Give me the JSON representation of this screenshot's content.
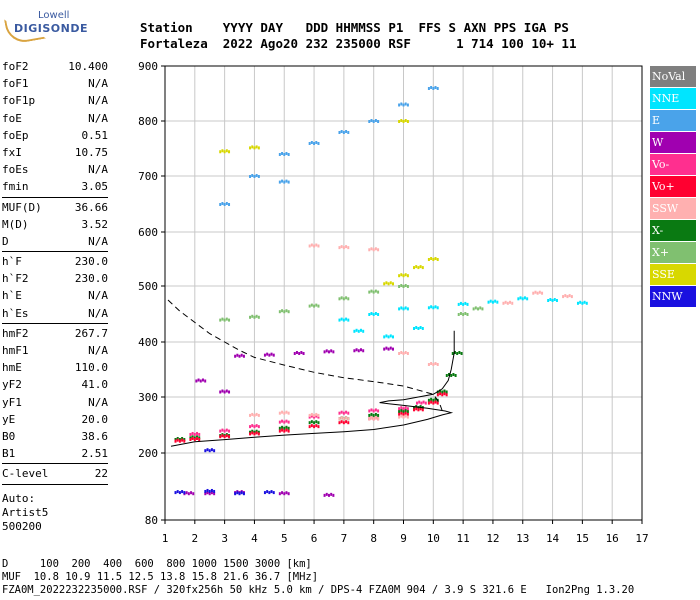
{
  "logo": {
    "line1": "Lowell",
    "line2": "DIGISONDE"
  },
  "header": {
    "row1": "Station    YYYY DAY   DDD HHMMSS P1  FFS S AXN PPS IGA PS",
    "row2": "Fortaleza  2022 Ago20 232 235000 RSF      1 714 100 10+ 11"
  },
  "params": {
    "group1": [
      {
        "label": "foF2",
        "value": "10.400"
      },
      {
        "label": "foF1",
        "value": "N/A"
      },
      {
        "label": "foF1p",
        "value": "N/A"
      },
      {
        "label": "foE",
        "value": "N/A"
      },
      {
        "label": "foEp",
        "value": "0.51"
      },
      {
        "label": "fxI",
        "value": "10.75"
      },
      {
        "label": "foEs",
        "value": "N/A"
      },
      {
        "label": "fmin",
        "value": "3.05"
      }
    ],
    "group2": [
      {
        "label": "MUF(D)",
        "value": "36.66"
      },
      {
        "label": "M(D)",
        "value": "3.52"
      },
      {
        "label": "D",
        "value": "N/A"
      }
    ],
    "group3": [
      {
        "label": "h`F",
        "value": "230.0"
      },
      {
        "label": "h`F2",
        "value": "230.0"
      },
      {
        "label": "h`E",
        "value": "N/A"
      },
      {
        "label": "h`Es",
        "value": "N/A"
      }
    ],
    "group4": [
      {
        "label": "hmF2",
        "value": "267.7"
      },
      {
        "label": "hmF1",
        "value": "N/A"
      },
      {
        "label": "hmE",
        "value": "110.0"
      },
      {
        "label": "yF2",
        "value": "41.0"
      },
      {
        "label": "yF1",
        "value": "N/A"
      },
      {
        "label": "yE",
        "value": "20.0"
      },
      {
        "label": "B0",
        "value": "38.6"
      },
      {
        "label": "B1",
        "value": "2.51"
      }
    ],
    "group5": [
      {
        "label": "C-level",
        "value": "22"
      }
    ],
    "autoscale": [
      "Auto:",
      "Artist5",
      "500200"
    ]
  },
  "legend": [
    {
      "label": "NoVal",
      "color": "#7f7f7f"
    },
    {
      "label": "NNE",
      "color": "#00e5ff"
    },
    {
      "label": "E",
      "color": "#4aa3ea"
    },
    {
      "label": "W",
      "color": "#a000b0"
    },
    {
      "label": "Vo-",
      "color": "#ff2f8f"
    },
    {
      "label": "Vo+",
      "color": "#ff0030"
    },
    {
      "label": "SSW",
      "color": "#ffb0b0"
    },
    {
      "label": "X-",
      "color": "#0a7a12"
    },
    {
      "label": "X+",
      "color": "#80c070"
    },
    {
      "label": "SSE",
      "color": "#d8d800"
    },
    {
      "label": "NNW",
      "color": "#1a10e0"
    }
  ],
  "footer": {
    "line1": "D     100  200  400  600  800 1000 1500 3000 [km]",
    "line2": "MUF  10.8 10.9 11.5 12.5 13.8 15.8 21.6 36.7 [MHz]",
    "line3": "FZA0M_2022232235000.RSF / 320fx256h 50 kHz 5.0 km / DPS-4 FZA0M 904 / 3.9 S 321.6 E   Ion2Png 1.3.20"
  },
  "chart_data": {
    "type": "scatter",
    "x_ticks": [
      "1",
      "2",
      "3",
      "4",
      "5",
      "6",
      "7",
      "8",
      "9",
      "10",
      "11",
      "12",
      "13",
      "14",
      "15",
      "16",
      "17"
    ],
    "y_ticks": [
      "80",
      "200",
      "300",
      "400",
      "500",
      "600",
      "700",
      "800",
      "900"
    ],
    "xlim": [
      1,
      17
    ],
    "ylim": [
      80,
      900
    ],
    "y_scale": "nonlinear (ionogram virtual height)",
    "grid": true,
    "legend_position": "right",
    "series": [
      {
        "color_ref": "X-",
        "color": "#0a7a12",
        "points": [
          [
            1.5,
            225
          ],
          [
            2,
            228
          ],
          [
            3,
            232
          ],
          [
            4,
            238
          ],
          [
            5,
            245
          ],
          [
            6,
            255
          ],
          [
            7,
            262
          ],
          [
            8,
            268
          ],
          [
            9,
            275
          ],
          [
            9.5,
            282
          ],
          [
            10,
            295
          ],
          [
            10.3,
            310
          ],
          [
            10.6,
            340
          ],
          [
            10.8,
            380
          ]
        ]
      },
      {
        "color_ref": "Vo+",
        "color": "#ff0030",
        "points": [
          [
            1.5,
            222
          ],
          [
            2,
            225
          ],
          [
            3,
            230
          ],
          [
            4,
            235
          ],
          [
            5,
            240
          ],
          [
            6,
            248
          ],
          [
            7,
            255
          ],
          [
            8,
            262
          ],
          [
            9,
            270
          ],
          [
            9.5,
            278
          ],
          [
            10,
            290
          ],
          [
            10.3,
            305
          ]
        ]
      },
      {
        "color_ref": "Vo-",
        "color": "#ff2f8f",
        "points": [
          [
            2,
            234
          ],
          [
            3,
            240
          ],
          [
            4,
            248
          ],
          [
            5,
            256
          ],
          [
            6,
            265
          ],
          [
            7,
            272
          ],
          [
            8,
            276
          ],
          [
            9,
            280
          ],
          [
            9.6,
            290
          ]
        ]
      },
      {
        "color_ref": "W",
        "color": "#a000b0",
        "points": [
          [
            3.5,
            375
          ],
          [
            4.5,
            377
          ],
          [
            5.5,
            380
          ],
          [
            6.5,
            383
          ],
          [
            7.5,
            385
          ],
          [
            8.5,
            388
          ],
          [
            1.8,
            128
          ],
          [
            2.5,
            128
          ],
          [
            3.5,
            130
          ],
          [
            5,
            128
          ],
          [
            6.5,
            125
          ],
          [
            2.2,
            330
          ],
          [
            3,
            310
          ]
        ]
      },
      {
        "color_ref": "SSW",
        "color": "#ffb0b0",
        "points": [
          [
            4,
            268
          ],
          [
            5,
            272
          ],
          [
            6,
            268
          ],
          [
            7,
            262
          ],
          [
            8,
            262
          ],
          [
            9,
            265
          ],
          [
            6,
            575
          ],
          [
            7,
            572
          ],
          [
            8,
            568
          ],
          [
            9,
            380
          ],
          [
            10,
            360
          ],
          [
            12.5,
            470
          ],
          [
            13.5,
            488
          ],
          [
            14.5,
            482
          ]
        ]
      },
      {
        "color_ref": "NNE",
        "color": "#00e5ff",
        "points": [
          [
            7,
            440
          ],
          [
            8,
            450
          ],
          [
            9,
            460
          ],
          [
            10,
            462
          ],
          [
            11,
            468
          ],
          [
            12,
            472
          ],
          [
            13,
            478
          ],
          [
            14,
            475
          ],
          [
            15,
            470
          ],
          [
            7.5,
            420
          ],
          [
            8.5,
            410
          ],
          [
            9.5,
            425
          ]
        ]
      },
      {
        "color_ref": "E",
        "color": "#4aa3ea",
        "points": [
          [
            4,
            700
          ],
          [
            5,
            740
          ],
          [
            6,
            760
          ],
          [
            7,
            780
          ],
          [
            8,
            800
          ],
          [
            9,
            830
          ],
          [
            10,
            860
          ],
          [
            3,
            650
          ],
          [
            5,
            690
          ]
        ]
      },
      {
        "color_ref": "SSE",
        "color": "#d8d800",
        "points": [
          [
            3,
            745
          ],
          [
            4,
            752
          ],
          [
            8.5,
            505
          ],
          [
            9,
            520
          ],
          [
            9.5,
            535
          ],
          [
            10,
            550
          ],
          [
            9,
            800
          ]
        ]
      },
      {
        "color_ref": "NNW",
        "color": "#1a10e0",
        "points": [
          [
            1.5,
            130
          ],
          [
            2.5,
            132
          ],
          [
            3.5,
            128
          ],
          [
            4.5,
            130
          ],
          [
            2.5,
            205
          ]
        ]
      },
      {
        "color_ref": "X+",
        "color": "#80c070",
        "points": [
          [
            3,
            440
          ],
          [
            4,
            445
          ],
          [
            5,
            455
          ],
          [
            6,
            465
          ],
          [
            7,
            478
          ],
          [
            8,
            490
          ],
          [
            9,
            500
          ],
          [
            11,
            450
          ],
          [
            11.5,
            460
          ]
        ]
      }
    ],
    "curves": [
      {
        "name": "profile",
        "style": "solid",
        "points": [
          [
            1.2,
            212
          ],
          [
            2,
            220
          ],
          [
            3,
            224
          ],
          [
            4,
            228
          ],
          [
            5,
            232
          ],
          [
            6,
            235
          ],
          [
            7,
            238
          ],
          [
            8,
            242
          ],
          [
            9,
            250
          ],
          [
            9.8,
            260
          ],
          [
            10.3,
            268
          ],
          [
            10.6,
            272
          ],
          [
            10.4,
            275
          ],
          [
            9.8,
            280
          ],
          [
            9,
            285
          ],
          [
            8.5,
            288
          ],
          [
            8.2,
            290
          ],
          [
            8.5,
            293
          ],
          [
            9,
            295
          ],
          [
            9.5,
            300
          ],
          [
            10,
            305
          ],
          [
            10.3,
            315
          ],
          [
            10.5,
            330
          ],
          [
            10.6,
            350
          ],
          [
            10.7,
            380
          ],
          [
            10.7,
            420
          ]
        ]
      },
      {
        "name": "MUF",
        "style": "dashed",
        "points": [
          [
            1.1,
            475
          ],
          [
            1.5,
            455
          ],
          [
            2,
            435
          ],
          [
            2.5,
            415
          ],
          [
            3,
            400
          ],
          [
            3.5,
            385
          ],
          [
            4,
            372
          ],
          [
            5,
            358
          ],
          [
            6,
            345
          ],
          [
            7,
            335
          ],
          [
            8,
            328
          ],
          [
            9,
            320
          ],
          [
            10,
            305
          ],
          [
            10.2,
            290
          ],
          [
            10.3,
            275
          ]
        ]
      }
    ]
  }
}
